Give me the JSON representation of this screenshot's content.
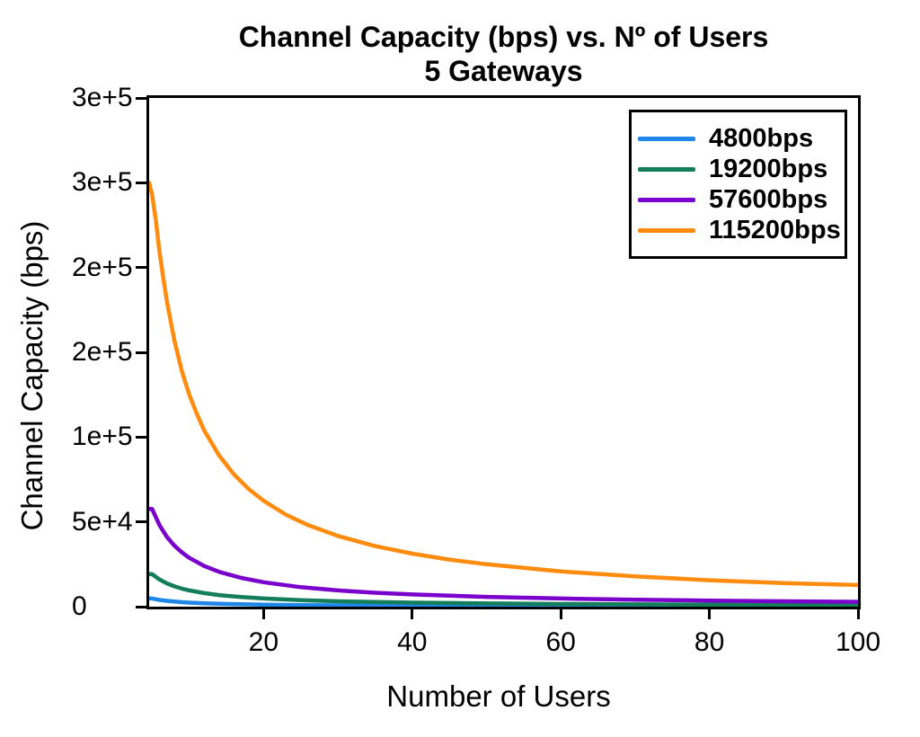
{
  "chart_data": {
    "type": "line",
    "title": "Channel Capacity (bps) vs. Nº of Users",
    "subtitle": "5 Gateways",
    "xlabel": "Number of Users",
    "ylabel": "Channel Capacity (bps)",
    "xlim": [
      4.6,
      100
    ],
    "ylim": [
      0,
      300000
    ],
    "grid": false,
    "legend_position": "upper-right",
    "x_ticks": [
      {
        "value": 20,
        "label": "20"
      },
      {
        "value": 40,
        "label": "40"
      },
      {
        "value": 60,
        "label": "60"
      },
      {
        "value": 80,
        "label": "80"
      },
      {
        "value": 100,
        "label": "100"
      }
    ],
    "y_ticks": [
      {
        "value": 300000,
        "label": "3e+5"
      },
      {
        "value": 250000,
        "label": "3e+5"
      },
      {
        "value": 200000,
        "label": "2e+5"
      },
      {
        "value": 150000,
        "label": "2e+5"
      },
      {
        "value": 100000,
        "label": "1e+5"
      },
      {
        "value": 50000,
        "label": "5e+4"
      },
      {
        "value": 0,
        "label": "0"
      }
    ],
    "series": [
      {
        "name": "4800bps",
        "color": "#1e87e8",
        "points": [
          [
            4.6,
            4800
          ],
          [
            5,
            4800
          ],
          [
            6,
            4000
          ],
          [
            7,
            3429
          ],
          [
            8,
            3000
          ],
          [
            9,
            2667
          ],
          [
            10,
            2400
          ],
          [
            12,
            2000
          ],
          [
            14,
            1714
          ],
          [
            17,
            1412
          ],
          [
            20,
            1200
          ],
          [
            25,
            960
          ],
          [
            30,
            800
          ],
          [
            35,
            686
          ],
          [
            40,
            600
          ],
          [
            50,
            480
          ],
          [
            60,
            400
          ],
          [
            70,
            343
          ],
          [
            80,
            300
          ],
          [
            90,
            267
          ],
          [
            100,
            240
          ]
        ]
      },
      {
        "name": "19200bps",
        "color": "#147d5a",
        "points": [
          [
            4.6,
            19200
          ],
          [
            5,
            19200
          ],
          [
            6,
            16000
          ],
          [
            7,
            13714
          ],
          [
            8,
            12000
          ],
          [
            9,
            10667
          ],
          [
            10,
            9600
          ],
          [
            12,
            8000
          ],
          [
            14,
            6857
          ],
          [
            17,
            5647
          ],
          [
            20,
            4800
          ],
          [
            25,
            3840
          ],
          [
            30,
            3200
          ],
          [
            35,
            2743
          ],
          [
            40,
            2400
          ],
          [
            50,
            1920
          ],
          [
            60,
            1600
          ],
          [
            70,
            1371
          ],
          [
            80,
            1200
          ],
          [
            90,
            1067
          ],
          [
            100,
            960
          ]
        ]
      },
      {
        "name": "57600bps",
        "color": "#7a00cc",
        "points": [
          [
            4.6,
            57600
          ],
          [
            5,
            57600
          ],
          [
            6,
            48000
          ],
          [
            7,
            41143
          ],
          [
            8,
            36000
          ],
          [
            9,
            32000
          ],
          [
            10,
            28800
          ],
          [
            12,
            24000
          ],
          [
            14,
            20571
          ],
          [
            17,
            16941
          ],
          [
            20,
            14400
          ],
          [
            25,
            11520
          ],
          [
            30,
            9600
          ],
          [
            35,
            8229
          ],
          [
            40,
            7200
          ],
          [
            50,
            5760
          ],
          [
            60,
            4800
          ],
          [
            70,
            4114
          ],
          [
            80,
            3600
          ],
          [
            90,
            3200
          ],
          [
            100,
            2880
          ]
        ]
      },
      {
        "name": "115200bps",
        "color": "#ff8c0f",
        "points": [
          [
            4.6,
            250000
          ],
          [
            5,
            243000
          ],
          [
            5.5,
            228000
          ],
          [
            6,
            209000
          ],
          [
            6.5,
            194000
          ],
          [
            7,
            180000
          ],
          [
            8,
            157000
          ],
          [
            9,
            139000
          ],
          [
            10,
            125000
          ],
          [
            11,
            114000
          ],
          [
            12,
            104000
          ],
          [
            14,
            89300
          ],
          [
            16,
            78100
          ],
          [
            18,
            69400
          ],
          [
            20,
            62500
          ],
          [
            23,
            54300
          ],
          [
            26,
            48100
          ],
          [
            30,
            41700
          ],
          [
            35,
            35700
          ],
          [
            40,
            31250
          ],
          [
            45,
            27800
          ],
          [
            50,
            25000
          ],
          [
            60,
            20800
          ],
          [
            70,
            17900
          ],
          [
            80,
            15600
          ],
          [
            90,
            13900
          ],
          [
            100,
            12800
          ]
        ]
      }
    ]
  },
  "colors": {
    "axis": "#000000",
    "text": "#000000",
    "background": "#ffffff"
  }
}
